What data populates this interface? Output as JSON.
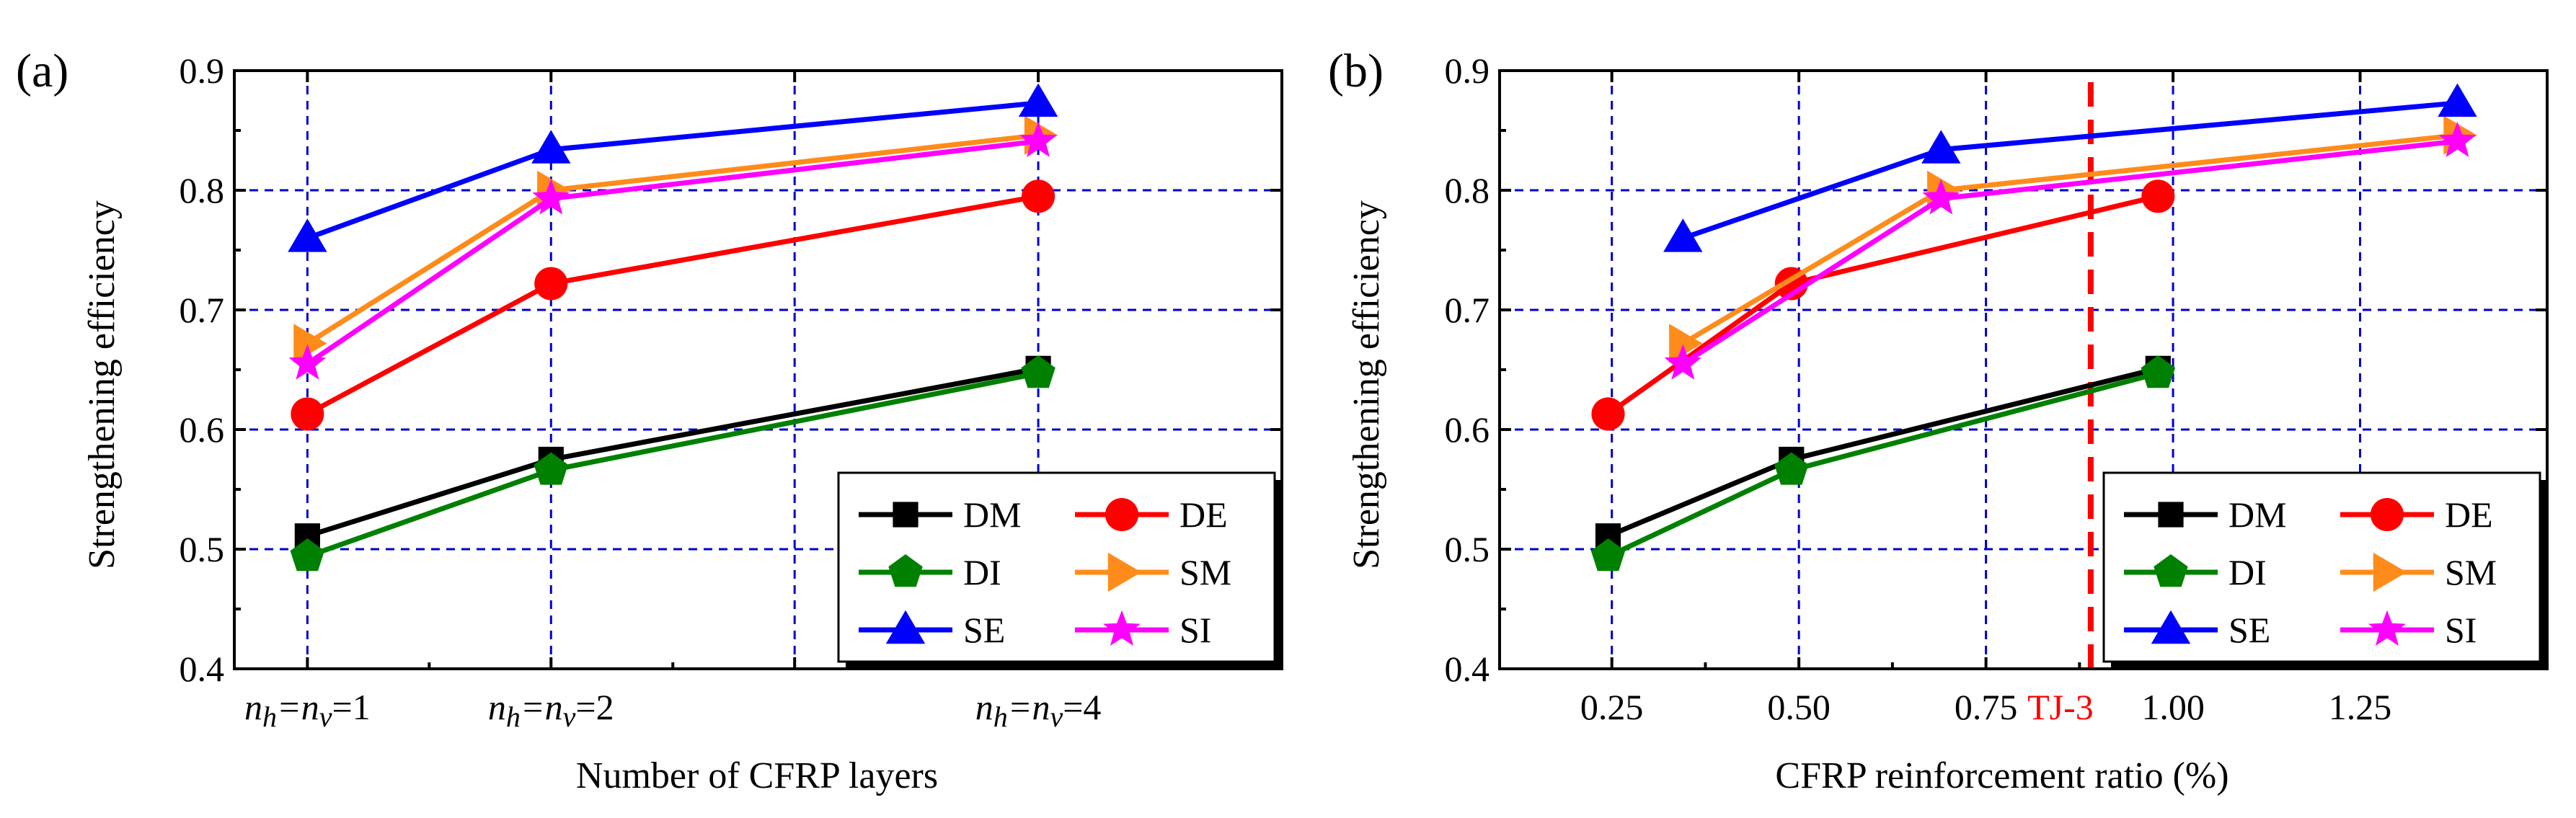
{
  "chart_data": [
    {
      "type": "line",
      "panel_label": "(a)",
      "xlabel": "Number of CFRP layers",
      "ylabel": "Strengthening efficiency",
      "ylim": [
        0.4,
        0.9
      ],
      "xlim": [
        0.7,
        5
      ],
      "yticks": [
        "0.4",
        "0.5",
        "0.6",
        "0.7",
        "0.8",
        "0.9"
      ],
      "ytick_values": [
        0.4,
        0.5,
        0.6,
        0.7,
        0.8,
        0.9
      ],
      "xgrid": [
        1,
        2,
        3,
        4
      ],
      "xticks": [
        {
          "x": 1,
          "label": "n",
          "sub": "h",
          "mid": "=n",
          "sub2": "v",
          "end": "=1"
        },
        {
          "x": 2,
          "label": "n",
          "sub": "h",
          "mid": "=n",
          "sub2": "v",
          "end": "=2"
        },
        {
          "x": 4,
          "label": "n",
          "sub": "h",
          "mid": "=n",
          "sub2": "v",
          "end": "=4"
        }
      ],
      "grid": true,
      "legend_position": "bottom-right",
      "series": [
        {
          "name": "DM",
          "color": "#000000",
          "marker": "square",
          "x": [
            1,
            2,
            4
          ],
          "values": [
            0.511,
            0.575,
            0.651
          ]
        },
        {
          "name": "DE",
          "color": "#ff0000",
          "marker": "circle",
          "x": [
            1,
            2,
            4
          ],
          "values": [
            0.613,
            0.722,
            0.795
          ]
        },
        {
          "name": "DI",
          "color": "#008000",
          "marker": "pentagon",
          "x": [
            1,
            2,
            4
          ],
          "values": [
            0.494,
            0.566,
            0.647
          ]
        },
        {
          "name": "SM",
          "color": "#ff8c1a",
          "marker": "triangle-right",
          "x": [
            1,
            2,
            4
          ],
          "values": [
            0.672,
            0.8,
            0.846
          ]
        },
        {
          "name": "SE",
          "color": "#0000ff",
          "marker": "triangle-up",
          "x": [
            1,
            2,
            4
          ],
          "values": [
            0.76,
            0.834,
            0.873
          ]
        },
        {
          "name": "SI",
          "color": "#ff00ff",
          "marker": "star",
          "x": [
            1,
            2,
            4
          ],
          "values": [
            0.655,
            0.793,
            0.841
          ]
        }
      ]
    },
    {
      "type": "line",
      "panel_label": "(b)",
      "xlabel": "CFRP reinforcement ratio (%)",
      "ylabel": "Strengthening efficiency",
      "ylim": [
        0.4,
        0.9
      ],
      "xlim": [
        0.1,
        1.5
      ],
      "yticks": [
        "0.4",
        "0.5",
        "0.6",
        "0.7",
        "0.8",
        "0.9"
      ],
      "ytick_values": [
        0.4,
        0.5,
        0.6,
        0.7,
        0.8,
        0.9
      ],
      "xgrid": [
        0.25,
        0.5,
        0.75,
        1.0,
        1.25
      ],
      "xticks": [
        {
          "x": 0.25,
          "label": "0.25"
        },
        {
          "x": 0.5,
          "label": "0.50"
        },
        {
          "x": 0.75,
          "label": "0.75"
        },
        {
          "x": 1.0,
          "label": "1.00"
        },
        {
          "x": 1.25,
          "label": "1.25"
        }
      ],
      "annotation": {
        "label": "TJ-3",
        "x": 0.89,
        "color": "#ff0000"
      },
      "grid": true,
      "legend_position": "bottom-right",
      "series": [
        {
          "name": "DM",
          "color": "#000000",
          "marker": "square",
          "x": [
            0.245,
            0.49,
            0.98
          ],
          "values": [
            0.511,
            0.575,
            0.651
          ]
        },
        {
          "name": "DE",
          "color": "#ff0000",
          "marker": "circle",
          "x": [
            0.245,
            0.49,
            0.98
          ],
          "values": [
            0.613,
            0.722,
            0.795
          ]
        },
        {
          "name": "DI",
          "color": "#008000",
          "marker": "pentagon",
          "x": [
            0.245,
            0.49,
            0.98
          ],
          "values": [
            0.494,
            0.566,
            0.647
          ]
        },
        {
          "name": "SM",
          "color": "#ff8c1a",
          "marker": "triangle-right",
          "x": [
            0.345,
            0.69,
            1.38
          ],
          "values": [
            0.672,
            0.8,
            0.846
          ]
        },
        {
          "name": "SE",
          "color": "#0000ff",
          "marker": "triangle-up",
          "x": [
            0.345,
            0.69,
            1.38
          ],
          "values": [
            0.76,
            0.834,
            0.873
          ]
        },
        {
          "name": "SI",
          "color": "#ff00ff",
          "marker": "star",
          "x": [
            0.345,
            0.69,
            1.38
          ],
          "values": [
            0.655,
            0.793,
            0.841
          ]
        }
      ]
    }
  ]
}
